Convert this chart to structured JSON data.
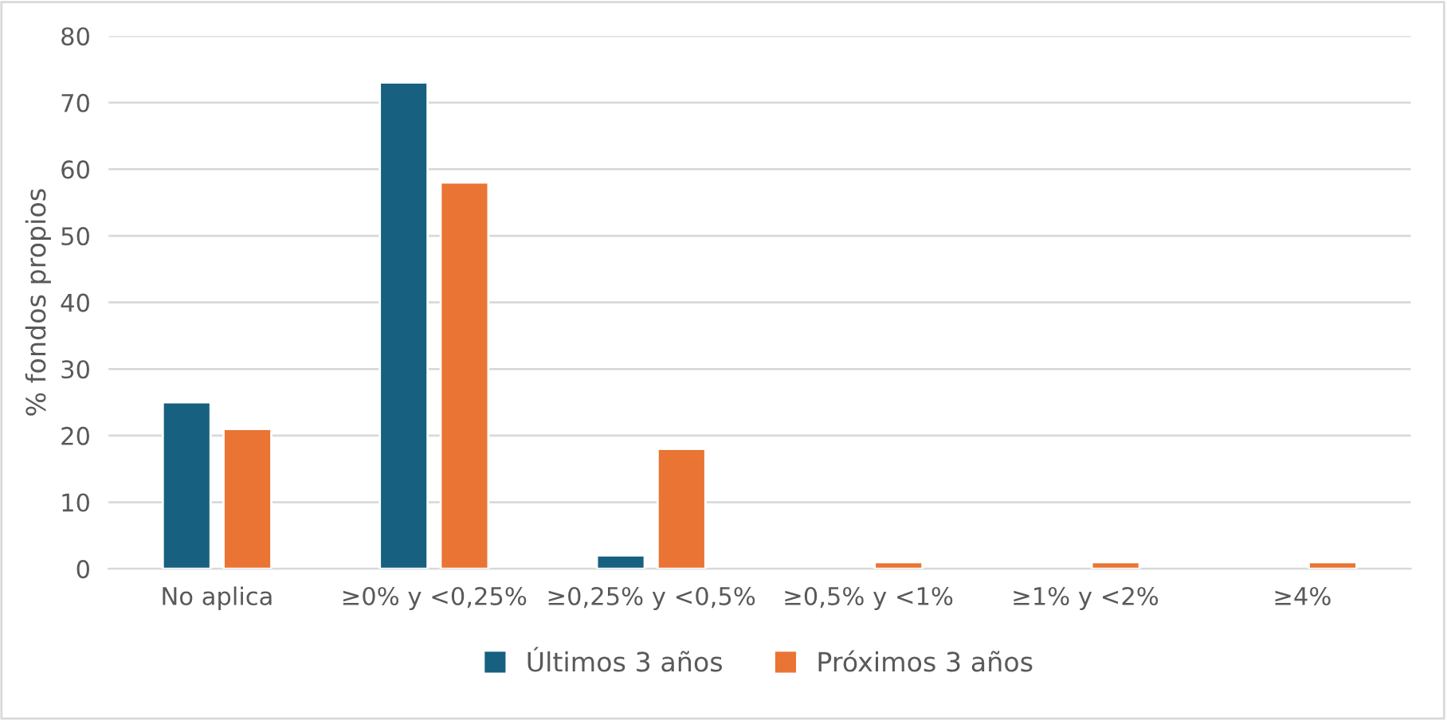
{
  "chart_data": {
    "type": "bar",
    "ylabel": "% fondos propios",
    "categories": [
      "No aplica",
      "≥0% y <0,25%",
      "≥0,25% y <0,5%",
      "≥0,5% y <1%",
      "≥1% y <2%",
      "≥4%"
    ],
    "series": [
      {
        "name": "Últimos 3 años",
        "color": "#17607f",
        "values": [
          25,
          73,
          2,
          null,
          null,
          null
        ]
      },
      {
        "name": "Próximos 3 años",
        "color": "#ea7433",
        "values": [
          21,
          58,
          18,
          1,
          1,
          1
        ]
      }
    ],
    "ylim": [
      0,
      80
    ],
    "yticks": [
      0,
      10,
      20,
      30,
      40,
      50,
      60,
      70,
      80
    ],
    "grid": "y",
    "legend": "bottom"
  }
}
